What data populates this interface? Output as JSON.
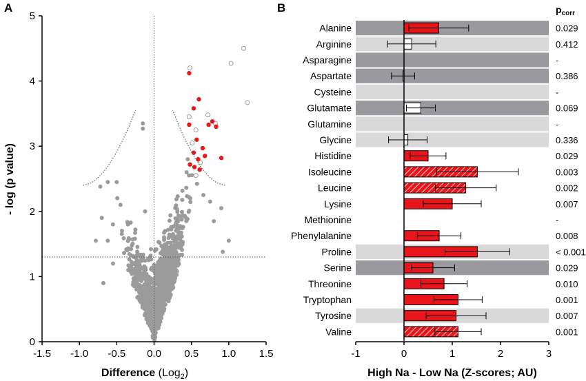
{
  "chart_data": [
    {
      "panel": "A",
      "type": "scatter",
      "xlabel": "Difference",
      "xlabel_unit_base": "(Log",
      "xlabel_unit_sub": "2",
      "xlabel_unit_close": ")",
      "ylabel": "- log (p value)",
      "xlim": [
        -1.5,
        1.5
      ],
      "ylim": [
        0,
        5
      ],
      "xticks": [
        "-1.5",
        "-1.0",
        "-0.5",
        "0.0",
        "0.5",
        "1.0",
        "1.5"
      ],
      "yticks": [
        "0",
        "1",
        "2",
        "3",
        "4",
        "5"
      ],
      "grid": false,
      "threshold_line_y": 1.3,
      "significant_points": [
        {
          "x": 0.47,
          "y": 4.12
        },
        {
          "x": 0.6,
          "y": 3.72
        },
        {
          "x": 0.53,
          "y": 3.58
        },
        {
          "x": 0.47,
          "y": 3.33
        },
        {
          "x": 0.73,
          "y": 3.33
        },
        {
          "x": 0.78,
          "y": 3.38
        },
        {
          "x": 0.57,
          "y": 3.1
        },
        {
          "x": 0.53,
          "y": 2.9
        },
        {
          "x": 0.65,
          "y": 2.97
        },
        {
          "x": 0.59,
          "y": 2.8
        },
        {
          "x": 0.68,
          "y": 2.85
        },
        {
          "x": 0.48,
          "y": 2.72
        },
        {
          "x": 0.54,
          "y": 2.68
        },
        {
          "x": 0.61,
          "y": 2.64
        },
        {
          "x": 0.9,
          "y": 2.82
        },
        {
          "x": 0.83,
          "y": 3.3
        }
      ],
      "open_points": [
        {
          "x": 1.2,
          "y": 4.5
        },
        {
          "x": 1.03,
          "y": 4.27
        },
        {
          "x": 1.25,
          "y": 3.67
        },
        {
          "x": 0.48,
          "y": 4.2
        },
        {
          "x": 0.47,
          "y": 3.45
        },
        {
          "x": 0.72,
          "y": 3.48
        },
        {
          "x": 0.82,
          "y": 3.35
        },
        {
          "x": 0.56,
          "y": 3.25
        },
        {
          "x": 0.51,
          "y": 3.05
        },
        {
          "x": 0.62,
          "y": 2.75
        },
        {
          "x": 0.56,
          "y": 2.55
        }
      ],
      "outlier_points": [
        {
          "x": -0.15,
          "y": 3.35
        },
        {
          "x": -0.15,
          "y": 3.27
        },
        {
          "x": -0.62,
          "y": 2.45
        },
        {
          "x": -0.72,
          "y": 2.38
        },
        {
          "x": -0.5,
          "y": 2.45
        },
        {
          "x": -0.45,
          "y": 2.1
        },
        {
          "x": -0.7,
          "y": 1.9
        },
        {
          "x": -0.35,
          "y": 1.8
        },
        {
          "x": -0.25,
          "y": 1.72
        },
        {
          "x": -0.62,
          "y": 1.55
        },
        {
          "x": -0.78,
          "y": 1.55
        },
        {
          "x": 0.9,
          "y": 2.05
        },
        {
          "x": 1.0,
          "y": 1.55
        },
        {
          "x": 0.92,
          "y": 1.38
        },
        {
          "x": -0.55,
          "y": 1.2
        },
        {
          "x": -0.68,
          "y": 0.9
        },
        {
          "x": 0.8,
          "y": 1.85
        },
        {
          "x": 0.75,
          "y": 2.15
        },
        {
          "x": -0.12,
          "y": 2.0
        },
        {
          "x": 0.45,
          "y": 2.8
        },
        {
          "x": 0.66,
          "y": 2.25
        }
      ]
    },
    {
      "panel": "B",
      "type": "bar",
      "orientation": "horizontal",
      "xlabel": "High Na - Low Na (Z-scores; AU)",
      "xlim": [
        -1,
        3
      ],
      "xticks": [
        "-1",
        "0",
        "1",
        "2",
        "3"
      ],
      "pcorr_header_base": "p",
      "pcorr_header_sub": "corr",
      "categories": [
        "Alanine",
        "Arginine",
        "Asparagine",
        "Aspartate",
        "Cysteine",
        "Glutamate",
        "Glutamine",
        "Glycine",
        "Histidine",
        "Isoleucine",
        "Leucine",
        "Lysine",
        "Methionine",
        "Phenylalanine",
        "Proline",
        "Serine",
        "Threonine",
        "Tryptophan",
        "Tyrosine",
        "Valine"
      ],
      "values": [
        0.72,
        0.16,
        null,
        -0.02,
        null,
        0.35,
        null,
        0.08,
        0.5,
        1.52,
        1.28,
        1.0,
        null,
        0.73,
        1.52,
        0.6,
        0.83,
        1.12,
        1.08,
        1.12
      ],
      "errors": [
        0.62,
        0.5,
        null,
        0.24,
        null,
        0.3,
        null,
        0.4,
        0.37,
        0.85,
        0.63,
        0.6,
        null,
        0.45,
        0.67,
        0.45,
        0.48,
        0.5,
        0.62,
        0.48
      ],
      "bar_style": [
        "red",
        "open",
        "none",
        "open",
        "none",
        "open",
        "none",
        "open",
        "red",
        "hatched",
        "hatched",
        "red",
        "none",
        "red",
        "red",
        "red",
        "red",
        "red",
        "red",
        "hatched"
      ],
      "row_band": [
        "dark",
        "light",
        "dark",
        "dark",
        "light",
        "dark",
        "light",
        "light",
        "white",
        "white",
        "white",
        "white",
        "white",
        "white",
        "light",
        "dark",
        "white",
        "white",
        "light",
        "white"
      ],
      "pcorr": [
        "0.029",
        "0.412",
        "-",
        "0.386",
        "-",
        "0.069",
        "-",
        "0.336",
        "0.029",
        "0.003",
        "0.002",
        "0.007",
        "-",
        "0.008",
        "< 0.001",
        "0.029",
        "0.010",
        "0.001",
        "0.007",
        "0.001"
      ]
    }
  ],
  "colors": {
    "significant": "#e8161b",
    "grey_points": "#9b9b9b",
    "dark_band": "#9a9a9e",
    "light_band": "#d9d9d9",
    "bar_red": "#e8161b",
    "bar_border": "#000000"
  }
}
